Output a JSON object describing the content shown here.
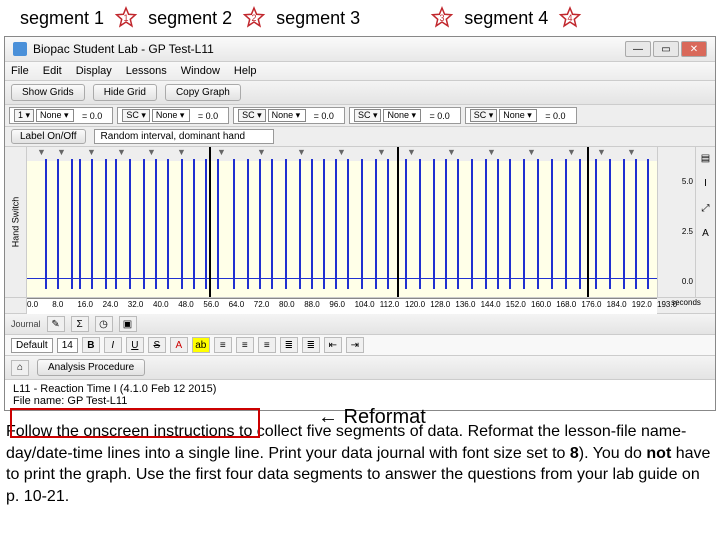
{
  "segments": {
    "s1": "segment 1",
    "s2": "segment 2",
    "s3": "segment 3",
    "s4": "segment 4"
  },
  "star": {
    "outline": "#c1272d",
    "numcolor": "#c1272d"
  },
  "window": {
    "title": "Biopac Student Lab - GP Test-L11",
    "menu": {
      "file": "File",
      "edit": "Edit",
      "display": "Display",
      "lessons": "Lessons",
      "window": "Window",
      "help": "Help"
    },
    "toolbar": {
      "showgrid": "Show Grids",
      "hidegrid": "Hide Grid",
      "copygraph": "Copy Graph"
    },
    "channels": [
      {
        "num": "1",
        "mode": "None",
        "val": "= 0.0"
      },
      {
        "num": "SC",
        "mode": "None",
        "val": "= 0.0"
      },
      {
        "num": "SC",
        "mode": "None",
        "val": "= 0.0"
      },
      {
        "num": "SC",
        "mode": "None",
        "val": "= 0.0"
      },
      {
        "num": "SC",
        "mode": "None",
        "val": "= 0.0"
      }
    ],
    "labelrow": {
      "btn": "Label On/Off",
      "text": "Random interval, dominant hand"
    },
    "chart": {
      "side_label": "Hand Switch",
      "bg": "#ffffe8",
      "spike_color": "#2030d0",
      "baseline_color": "#2030d0",
      "ylim": [
        0,
        5
      ],
      "yticks": [
        {
          "v": 5.0,
          "y": 30
        },
        {
          "v": 2.5,
          "y": 80
        },
        {
          "v": 0.0,
          "y": 130
        }
      ],
      "baseline_y": 131,
      "dividers": [
        182,
        370,
        560
      ],
      "spikes": [
        18,
        30,
        44,
        52,
        64,
        78,
        88,
        102,
        116,
        128,
        140,
        154,
        166,
        178,
        190,
        206,
        220,
        232,
        244,
        258,
        272,
        284,
        296,
        308,
        320,
        334,
        348,
        360,
        378,
        392,
        406,
        418,
        430,
        444,
        458,
        470,
        482,
        496,
        510,
        524,
        538,
        552,
        568,
        582,
        596,
        608,
        620,
        632
      ],
      "markers": [
        10,
        30,
        60,
        90,
        120,
        150,
        190,
        230,
        270,
        310,
        350,
        380,
        420,
        460,
        500,
        540,
        570,
        600,
        630
      ],
      "xticks": [
        "0.0",
        "8.0",
        "16.0",
        "24.0",
        "32.0",
        "40.0",
        "48.0",
        "56.0",
        "64.0",
        "72.0",
        "80.0",
        "88.0",
        "96.0",
        "104.0",
        "112.0",
        "120.0",
        "128.0",
        "136.0",
        "144.0",
        "152.0",
        "160.0",
        "168.0",
        "176.0",
        "184.0",
        "192.0",
        "193.0"
      ],
      "xlabel": "seconds",
      "right_tools": [
        "▤",
        "I",
        "⤢",
        "A"
      ]
    },
    "format": {
      "font": "Default",
      "size": "14",
      "btns": [
        "B",
        "I",
        "U",
        "S"
      ],
      "color": "#000",
      "align": [
        "≡",
        "≡",
        "≡",
        "≡",
        "≡",
        "≡",
        "≡",
        "≡"
      ]
    },
    "analyze_btn": "Analysis Procedure",
    "journal": {
      "l1": "L11 - Reaction Time I (4.1.0 Feb 12 2015)",
      "l2": "File name: GP Test-L11"
    }
  },
  "reformat_label": "←  Reformat",
  "instructions": {
    "t1": "Follow the onscreen instructions to collect five segments of data.  Reformat the lesson-file name-day/date-time lines into a single line.  Print your data journal with font size set to ",
    "t2": "8",
    "t3": ").  You do ",
    "t4": "not",
    "t5": " have to print the graph.  Use the first four data segments to answer the questions from your lab guide on p. 10-21."
  }
}
